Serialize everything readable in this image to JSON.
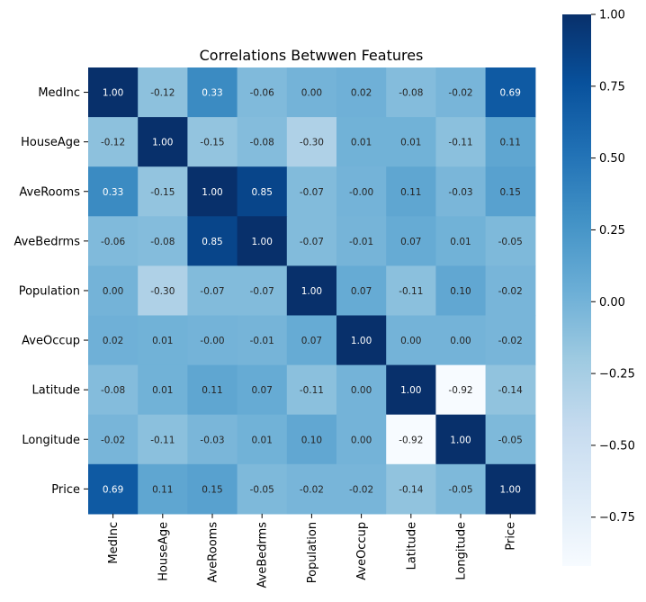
{
  "chart_data": {
    "type": "heatmap",
    "title": "Correlations Betwwen Features",
    "xlabel": "",
    "ylabel": "",
    "x_labels": [
      "MedInc",
      "HouseAge",
      "AveRooms",
      "AveBedrms",
      "Population",
      "AveOccup",
      "Latitude",
      "Longitude",
      "Price"
    ],
    "y_labels": [
      "MedInc",
      "HouseAge",
      "AveRooms",
      "AveBedrms",
      "Population",
      "AveOccup",
      "Latitude",
      "Longitude",
      "Price"
    ],
    "values": [
      [
        1.0,
        -0.12,
        0.33,
        -0.06,
        0.0,
        0.02,
        -0.08,
        -0.02,
        0.69
      ],
      [
        -0.12,
        1.0,
        -0.15,
        -0.08,
        -0.3,
        0.01,
        0.01,
        -0.11,
        0.11
      ],
      [
        0.33,
        -0.15,
        1.0,
        0.85,
        -0.07,
        -0.0,
        0.11,
        -0.03,
        0.15
      ],
      [
        -0.06,
        -0.08,
        0.85,
        1.0,
        -0.07,
        -0.01,
        0.07,
        0.01,
        -0.05
      ],
      [
        0.0,
        -0.3,
        -0.07,
        -0.07,
        1.0,
        0.07,
        -0.11,
        0.1,
        -0.02
      ],
      [
        0.02,
        0.01,
        -0.0,
        -0.01,
        0.07,
        1.0,
        0.0,
        0.0,
        -0.02
      ],
      [
        -0.08,
        0.01,
        0.11,
        0.07,
        -0.11,
        0.0,
        1.0,
        -0.92,
        -0.14
      ],
      [
        -0.02,
        -0.11,
        -0.03,
        0.01,
        0.1,
        0.0,
        -0.92,
        1.0,
        -0.05
      ],
      [
        0.69,
        0.11,
        0.15,
        -0.05,
        -0.02,
        -0.02,
        -0.14,
        -0.05,
        1.0
      ]
    ],
    "value_labels": [
      [
        "1.00",
        "-0.12",
        "0.33",
        "-0.06",
        "0.00",
        "0.02",
        "-0.08",
        "-0.02",
        "0.69"
      ],
      [
        "-0.12",
        "1.00",
        "-0.15",
        "-0.08",
        "-0.30",
        "0.01",
        "0.01",
        "-0.11",
        "0.11"
      ],
      [
        "0.33",
        "-0.15",
        "1.00",
        "0.85",
        "-0.07",
        "-0.00",
        "0.11",
        "-0.03",
        "0.15"
      ],
      [
        "-0.06",
        "-0.08",
        "0.85",
        "1.00",
        "-0.07",
        "-0.01",
        "0.07",
        "0.01",
        "-0.05"
      ],
      [
        "0.00",
        "-0.30",
        "-0.07",
        "-0.07",
        "1.00",
        "0.07",
        "-0.11",
        "0.10",
        "-0.02"
      ],
      [
        "0.02",
        "0.01",
        "-0.00",
        "-0.01",
        "0.07",
        "1.00",
        "0.00",
        "0.00",
        "-0.02"
      ],
      [
        "-0.08",
        "0.01",
        "0.11",
        "0.07",
        "-0.11",
        "0.00",
        "1.00",
        "-0.92",
        "-0.14"
      ],
      [
        "-0.02",
        "-0.11",
        "-0.03",
        "0.01",
        "0.10",
        "0.00",
        "-0.92",
        "1.00",
        "-0.05"
      ],
      [
        "0.69",
        "0.11",
        "0.15",
        "-0.05",
        "-0.02",
        "-0.02",
        "-0.14",
        "-0.05",
        "1.00"
      ]
    ],
    "colormap": "Blues",
    "vmin": -0.92,
    "vmax": 1.0,
    "colorbar_ticks": [
      1.0,
      0.75,
      0.5,
      0.25,
      0.0,
      -0.25,
      -0.5,
      -0.75
    ],
    "colorbar_tick_labels": [
      "1.00",
      "0.75",
      "0.50",
      "0.25",
      "0.00",
      "−0.25",
      "−0.50",
      "−0.75"
    ],
    "grid": false,
    "legend": "colorbar right"
  },
  "colors": {
    "background": "#ffffff",
    "text_dark": "#262626",
    "text_light": "#ffffff"
  }
}
